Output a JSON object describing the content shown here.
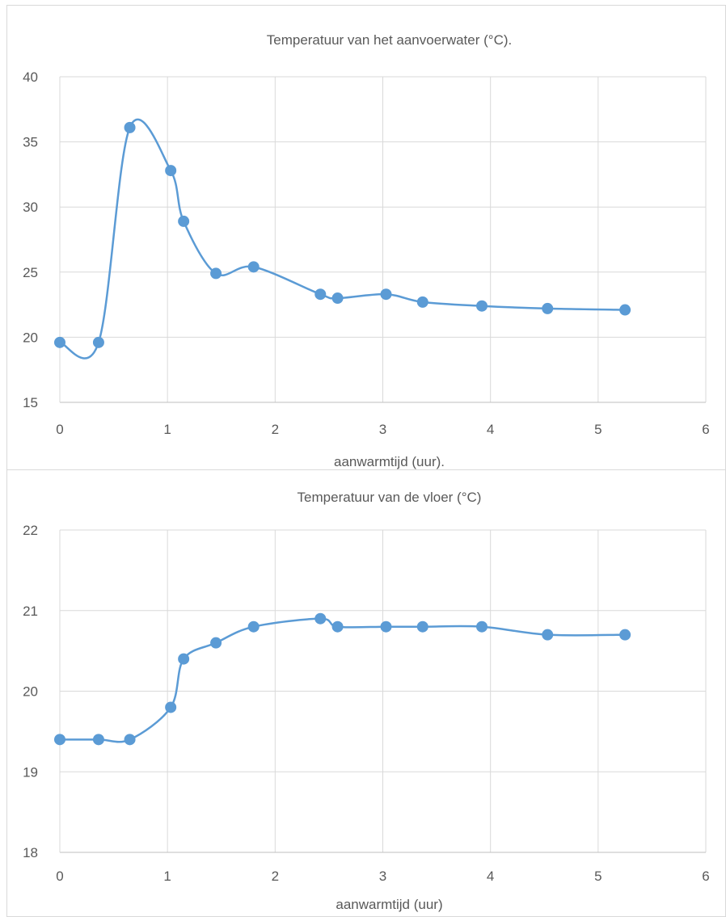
{
  "chart_data": [
    {
      "type": "line",
      "title": "Temperatuur van het aanvoerwater (°C).",
      "xlabel": "aanwarmtijd (uur).",
      "ylabel": "",
      "xlim": [
        0,
        6
      ],
      "ylim": [
        15,
        40
      ],
      "xticks": [
        0,
        1,
        2,
        3,
        4,
        5,
        6
      ],
      "yticks": [
        15,
        20,
        25,
        30,
        35,
        40
      ],
      "grid": true,
      "smooth": true,
      "color": "#5b9bd5",
      "series": [
        {
          "x": [
            0,
            0.36,
            0.65,
            1.03,
            1.15,
            1.45,
            1.8,
            2.42,
            2.58,
            3.03,
            3.37,
            3.92,
            4.53,
            5.25
          ],
          "y": [
            19.6,
            19.6,
            36.1,
            32.8,
            28.9,
            24.9,
            25.4,
            23.3,
            23.0,
            23.3,
            22.7,
            22.4,
            22.2,
            22.1
          ]
        }
      ]
    },
    {
      "type": "line",
      "title": "Temperatuur van de vloer (°C)",
      "xlabel": "aanwarmtijd (uur)",
      "ylabel": "",
      "xlim": [
        0,
        6
      ],
      "ylim": [
        18,
        22
      ],
      "xticks": [
        0,
        1,
        2,
        3,
        4,
        5,
        6
      ],
      "yticks": [
        18,
        19,
        20,
        21,
        22
      ],
      "grid": true,
      "smooth": true,
      "color": "#5b9bd5",
      "series": [
        {
          "x": [
            0,
            0.36,
            0.65,
            1.03,
            1.15,
            1.45,
            1.8,
            2.42,
            2.58,
            3.03,
            3.37,
            3.92,
            4.53,
            5.25
          ],
          "y": [
            19.4,
            19.4,
            19.4,
            19.8,
            20.4,
            20.6,
            20.8,
            20.9,
            20.8,
            20.8,
            20.8,
            20.8,
            20.7,
            20.7
          ]
        }
      ]
    }
  ]
}
